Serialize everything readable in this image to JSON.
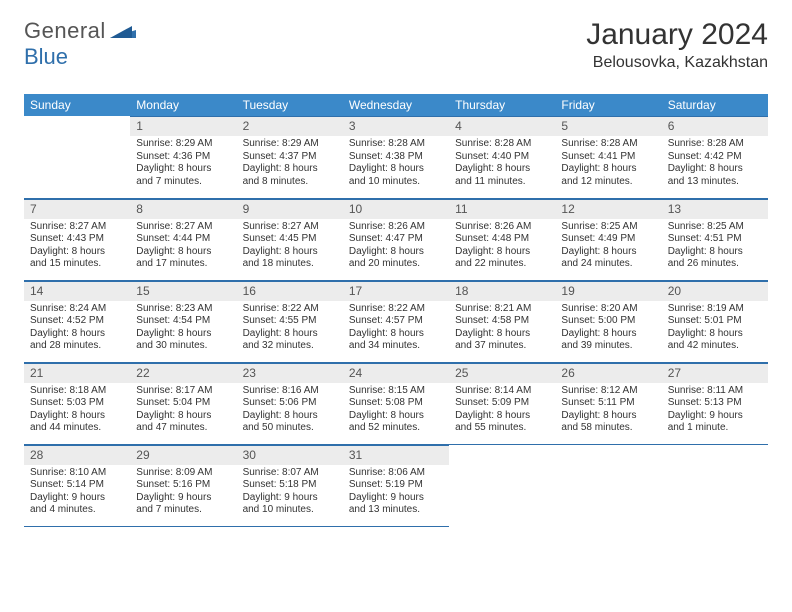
{
  "logo": {
    "part1": "General",
    "part2": "Blue"
  },
  "title": "January 2024",
  "location": "Belousovka, Kazakhstan",
  "colors": {
    "header_bg": "#3b89c9",
    "header_text": "#ffffff",
    "daynum_bg": "#ececec",
    "rule": "#2f6fab",
    "logo_gray": "#555555",
    "logo_blue": "#2f6fab"
  },
  "calendar": {
    "weekdays": [
      "Sunday",
      "Monday",
      "Tuesday",
      "Wednesday",
      "Thursday",
      "Friday",
      "Saturday"
    ],
    "first_weekday_index": 1,
    "days": [
      {
        "n": 1,
        "sunrise": "8:29 AM",
        "sunset": "4:36 PM",
        "daylight": "8 hours and 7 minutes."
      },
      {
        "n": 2,
        "sunrise": "8:29 AM",
        "sunset": "4:37 PM",
        "daylight": "8 hours and 8 minutes."
      },
      {
        "n": 3,
        "sunrise": "8:28 AM",
        "sunset": "4:38 PM",
        "daylight": "8 hours and 10 minutes."
      },
      {
        "n": 4,
        "sunrise": "8:28 AM",
        "sunset": "4:40 PM",
        "daylight": "8 hours and 11 minutes."
      },
      {
        "n": 5,
        "sunrise": "8:28 AM",
        "sunset": "4:41 PM",
        "daylight": "8 hours and 12 minutes."
      },
      {
        "n": 6,
        "sunrise": "8:28 AM",
        "sunset": "4:42 PM",
        "daylight": "8 hours and 13 minutes."
      },
      {
        "n": 7,
        "sunrise": "8:27 AM",
        "sunset": "4:43 PM",
        "daylight": "8 hours and 15 minutes."
      },
      {
        "n": 8,
        "sunrise": "8:27 AM",
        "sunset": "4:44 PM",
        "daylight": "8 hours and 17 minutes."
      },
      {
        "n": 9,
        "sunrise": "8:27 AM",
        "sunset": "4:45 PM",
        "daylight": "8 hours and 18 minutes."
      },
      {
        "n": 10,
        "sunrise": "8:26 AM",
        "sunset": "4:47 PM",
        "daylight": "8 hours and 20 minutes."
      },
      {
        "n": 11,
        "sunrise": "8:26 AM",
        "sunset": "4:48 PM",
        "daylight": "8 hours and 22 minutes."
      },
      {
        "n": 12,
        "sunrise": "8:25 AM",
        "sunset": "4:49 PM",
        "daylight": "8 hours and 24 minutes."
      },
      {
        "n": 13,
        "sunrise": "8:25 AM",
        "sunset": "4:51 PM",
        "daylight": "8 hours and 26 minutes."
      },
      {
        "n": 14,
        "sunrise": "8:24 AM",
        "sunset": "4:52 PM",
        "daylight": "8 hours and 28 minutes."
      },
      {
        "n": 15,
        "sunrise": "8:23 AM",
        "sunset": "4:54 PM",
        "daylight": "8 hours and 30 minutes."
      },
      {
        "n": 16,
        "sunrise": "8:22 AM",
        "sunset": "4:55 PM",
        "daylight": "8 hours and 32 minutes."
      },
      {
        "n": 17,
        "sunrise": "8:22 AM",
        "sunset": "4:57 PM",
        "daylight": "8 hours and 34 minutes."
      },
      {
        "n": 18,
        "sunrise": "8:21 AM",
        "sunset": "4:58 PM",
        "daylight": "8 hours and 37 minutes."
      },
      {
        "n": 19,
        "sunrise": "8:20 AM",
        "sunset": "5:00 PM",
        "daylight": "8 hours and 39 minutes."
      },
      {
        "n": 20,
        "sunrise": "8:19 AM",
        "sunset": "5:01 PM",
        "daylight": "8 hours and 42 minutes."
      },
      {
        "n": 21,
        "sunrise": "8:18 AM",
        "sunset": "5:03 PM",
        "daylight": "8 hours and 44 minutes."
      },
      {
        "n": 22,
        "sunrise": "8:17 AM",
        "sunset": "5:04 PM",
        "daylight": "8 hours and 47 minutes."
      },
      {
        "n": 23,
        "sunrise": "8:16 AM",
        "sunset": "5:06 PM",
        "daylight": "8 hours and 50 minutes."
      },
      {
        "n": 24,
        "sunrise": "8:15 AM",
        "sunset": "5:08 PM",
        "daylight": "8 hours and 52 minutes."
      },
      {
        "n": 25,
        "sunrise": "8:14 AM",
        "sunset": "5:09 PM",
        "daylight": "8 hours and 55 minutes."
      },
      {
        "n": 26,
        "sunrise": "8:12 AM",
        "sunset": "5:11 PM",
        "daylight": "8 hours and 58 minutes."
      },
      {
        "n": 27,
        "sunrise": "8:11 AM",
        "sunset": "5:13 PM",
        "daylight": "9 hours and 1 minute."
      },
      {
        "n": 28,
        "sunrise": "8:10 AM",
        "sunset": "5:14 PM",
        "daylight": "9 hours and 4 minutes."
      },
      {
        "n": 29,
        "sunrise": "8:09 AM",
        "sunset": "5:16 PM",
        "daylight": "9 hours and 7 minutes."
      },
      {
        "n": 30,
        "sunrise": "8:07 AM",
        "sunset": "5:18 PM",
        "daylight": "9 hours and 10 minutes."
      },
      {
        "n": 31,
        "sunrise": "8:06 AM",
        "sunset": "5:19 PM",
        "daylight": "9 hours and 13 minutes."
      }
    ]
  },
  "labels": {
    "sunrise": "Sunrise:",
    "sunset": "Sunset:",
    "daylight": "Daylight:"
  }
}
